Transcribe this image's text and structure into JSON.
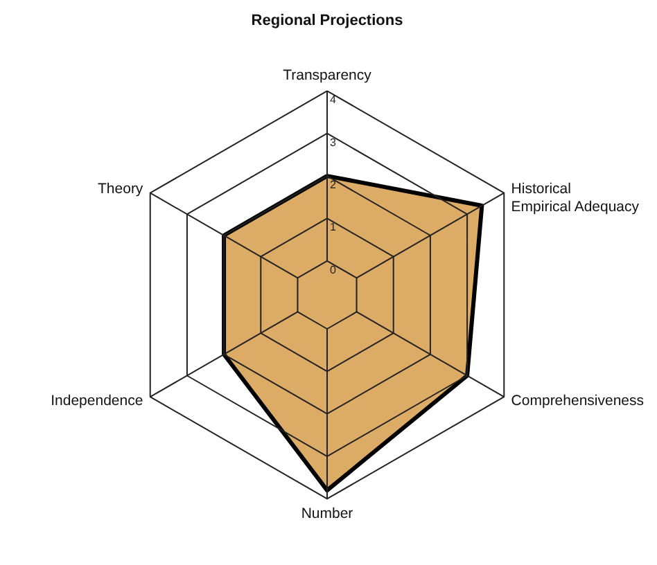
{
  "chart_data": {
    "type": "radar",
    "title": "Regional Projections",
    "categories": [
      "Transparency",
      "Historical Empirical Adequacy",
      "Comprehensiveness",
      "Number",
      "Independence",
      "Theory"
    ],
    "series": [
      {
        "color": "#dcab66",
        "values": [
          2,
          3.4,
          3,
          3.8,
          2,
          2
        ]
      }
    ],
    "ylim": [
      -0.8,
      4
    ],
    "yticks": [
      0,
      1,
      2,
      3,
      4
    ],
    "grid": true
  }
}
